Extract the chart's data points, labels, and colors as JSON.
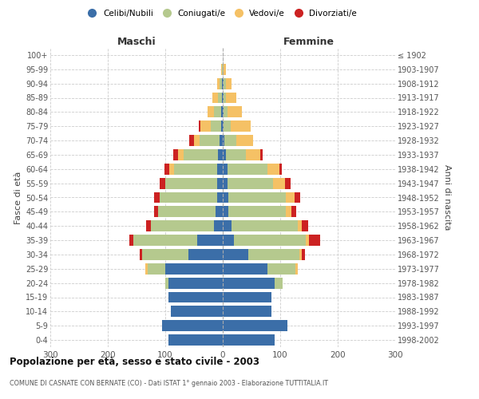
{
  "age_groups": [
    "0-4",
    "5-9",
    "10-14",
    "15-19",
    "20-24",
    "25-29",
    "30-34",
    "35-39",
    "40-44",
    "45-49",
    "50-54",
    "55-59",
    "60-64",
    "65-69",
    "70-74",
    "75-79",
    "80-84",
    "85-89",
    "90-94",
    "95-99",
    "100+"
  ],
  "birth_years": [
    "1998-2002",
    "1993-1997",
    "1988-1992",
    "1983-1987",
    "1978-1982",
    "1973-1977",
    "1968-1972",
    "1963-1967",
    "1958-1962",
    "1953-1957",
    "1948-1952",
    "1943-1947",
    "1938-1942",
    "1933-1937",
    "1928-1932",
    "1923-1927",
    "1918-1922",
    "1913-1917",
    "1908-1912",
    "1903-1907",
    "≤ 1902"
  ],
  "maschi_celibi": [
    95,
    105,
    90,
    95,
    95,
    100,
    60,
    45,
    15,
    12,
    10,
    10,
    10,
    8,
    5,
    3,
    3,
    2,
    2,
    0,
    0
  ],
  "maschi_coniugati": [
    0,
    0,
    0,
    0,
    5,
    30,
    80,
    110,
    110,
    100,
    100,
    90,
    75,
    60,
    35,
    18,
    12,
    6,
    4,
    1,
    0
  ],
  "maschi_vedovi": [
    0,
    0,
    0,
    0,
    0,
    5,
    0,
    0,
    0,
    0,
    0,
    0,
    8,
    10,
    10,
    18,
    12,
    10,
    4,
    2,
    0
  ],
  "maschi_divorziati": [
    0,
    0,
    0,
    0,
    0,
    0,
    5,
    8,
    8,
    8,
    10,
    10,
    8,
    8,
    8,
    3,
    0,
    0,
    0,
    0,
    0
  ],
  "femmine_celibi": [
    90,
    112,
    85,
    85,
    90,
    78,
    45,
    20,
    15,
    10,
    10,
    8,
    8,
    5,
    3,
    2,
    1,
    1,
    1,
    0,
    0
  ],
  "femmine_coniugati": [
    0,
    0,
    0,
    0,
    14,
    48,
    88,
    125,
    115,
    100,
    100,
    80,
    70,
    35,
    20,
    12,
    8,
    5,
    4,
    2,
    0
  ],
  "femmine_vedovi": [
    0,
    0,
    0,
    0,
    0,
    5,
    5,
    5,
    8,
    10,
    15,
    20,
    20,
    25,
    30,
    35,
    25,
    18,
    10,
    3,
    0
  ],
  "femmine_divorziati": [
    0,
    0,
    0,
    0,
    0,
    0,
    5,
    20,
    10,
    8,
    10,
    10,
    5,
    5,
    0,
    0,
    0,
    0,
    0,
    0,
    0
  ],
  "color_celibi": "#3b6ea8",
  "color_coniugati": "#b5c98e",
  "color_vedovi": "#f5c165",
  "color_divorziati": "#cc2222",
  "xlim": 300,
  "title1": "Popolazione per età, sesso e stato civile - 2003",
  "title2": "COMUNE DI CASNATE CON BERNATE (CO) - Dati ISTAT 1° gennaio 2003 - Elaborazione TUTTITALIA.IT",
  "ylabel_left": "Fasce di età",
  "ylabel_right": "Anni di nascita",
  "header_left": "Maschi",
  "header_right": "Femmine",
  "legend_labels": [
    "Celibi/Nubili",
    "Coniugati/e",
    "Vedovi/e",
    "Divorziati/e"
  ],
  "bg_color": "#ffffff",
  "grid_color": "#cccccc"
}
